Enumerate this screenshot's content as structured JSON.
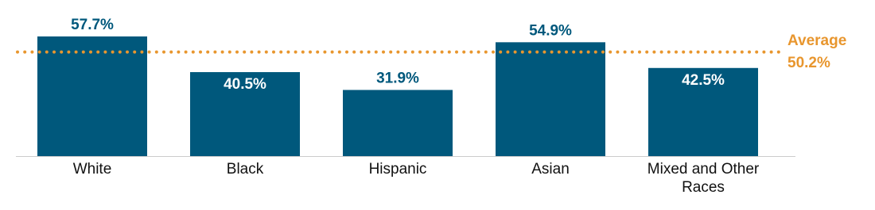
{
  "chart_data": {
    "type": "bar",
    "categories": [
      "White",
      "Black",
      "Hispanic",
      "Asian",
      "Mixed and Other Races"
    ],
    "values": [
      57.7,
      40.5,
      31.9,
      54.9,
      42.5
    ],
    "value_labels": [
      "57.7%",
      "40.5%",
      "31.9%",
      "54.9%",
      "42.5%"
    ],
    "label_inside": [
      false,
      true,
      false,
      false,
      true
    ],
    "color": "#00587c",
    "average": {
      "label": "Average",
      "value": 50.2,
      "value_label": "50.2%",
      "color": "#e8962e"
    }
  }
}
